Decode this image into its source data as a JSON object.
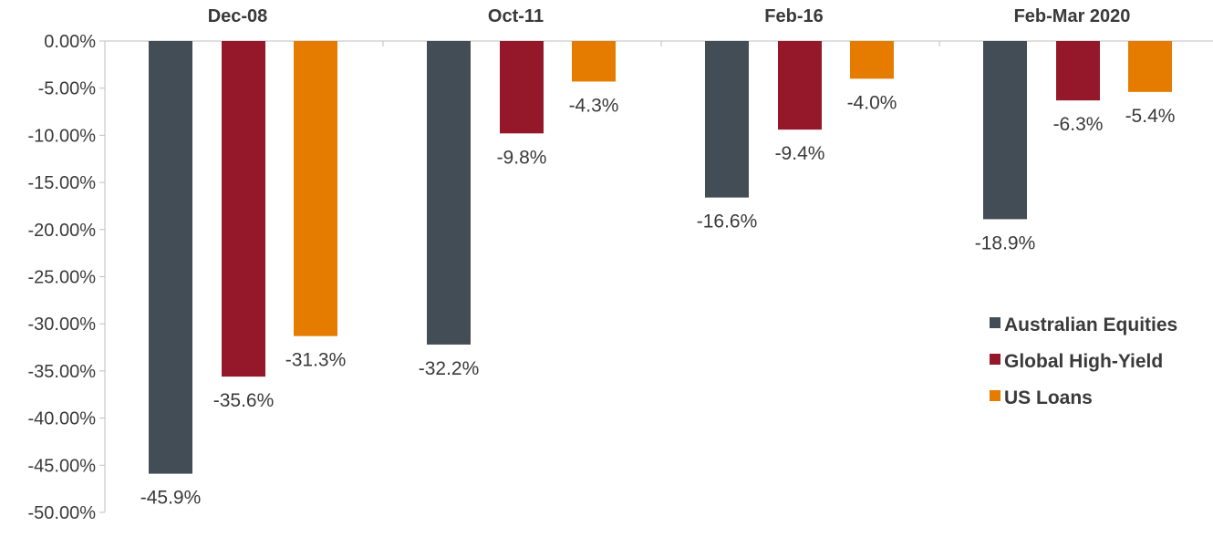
{
  "chart_data": {
    "type": "bar",
    "categories": [
      "Dec-08",
      "Oct-11",
      "Feb-16",
      "Feb-Mar 2020"
    ],
    "series": [
      {
        "name": "Australian Equities",
        "color": "#434d55",
        "values": [
          -45.9,
          -32.2,
          -16.6,
          -18.9
        ],
        "labels": [
          "-45.9%",
          "-32.2%",
          "-16.6%",
          "-18.9%"
        ]
      },
      {
        "name": "Global High-Yield",
        "color": "#95182a",
        "values": [
          -35.6,
          -9.8,
          -9.4,
          -6.3
        ],
        "labels": [
          "-35.6%",
          "-9.8%",
          "-9.4%",
          "-6.3%"
        ]
      },
      {
        "name": "US Loans",
        "color": "#e57c00",
        "values": [
          -31.3,
          -4.3,
          -4.0,
          -5.4
        ],
        "labels": [
          "-31.3%",
          "-4.3%",
          "-4.0%",
          "-5.4%"
        ]
      }
    ],
    "ylim": [
      -50,
      0
    ],
    "yticks": [
      0,
      -5,
      -10,
      -15,
      -20,
      -25,
      -30,
      -35,
      -40,
      -45,
      -50
    ],
    "ytick_labels": [
      "0.00%",
      "-5.00%",
      "-10.00%",
      "-15.00%",
      "-20.00%",
      "-25.00%",
      "-30.00%",
      "-35.00%",
      "-40.00%",
      "-45.00%",
      "-50.00%"
    ],
    "category_label_position": "top",
    "legend_position": "right",
    "grid": false,
    "title": "",
    "xlabel": "",
    "ylabel": ""
  }
}
